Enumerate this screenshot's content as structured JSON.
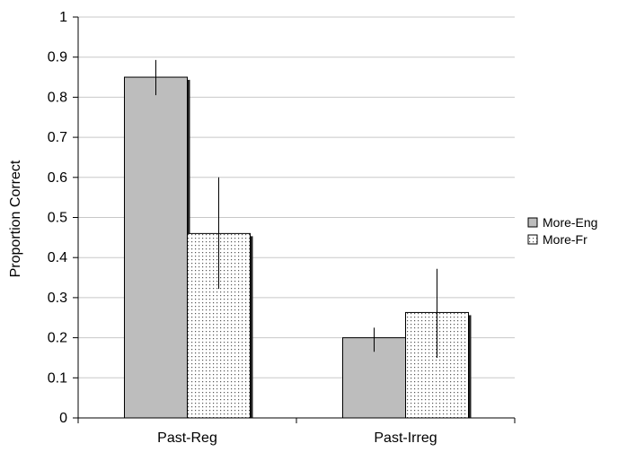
{
  "chart_data": {
    "type": "bar",
    "ylabel": "Proportion Correct",
    "ylim": [
      0,
      1
    ],
    "y_ticks": [
      "0",
      "0.1",
      "0.2",
      "0.3",
      "0.4",
      "0.5",
      "0.6",
      "0.7",
      "0.8",
      "0.9",
      "1"
    ],
    "categories": [
      "Past-Reg",
      "Past-Irreg"
    ],
    "series": [
      {
        "name": "More-Eng",
        "values": [
          0.85,
          0.2
        ],
        "error_low": [
          0.805,
          0.165
        ],
        "error_high": [
          0.893,
          0.225
        ],
        "pattern": "solid",
        "color": "#bdbdbd"
      },
      {
        "name": "More-Fr",
        "values": [
          0.46,
          0.263
        ],
        "error_low": [
          0.322,
          0.15
        ],
        "error_high": [
          0.6,
          0.372
        ],
        "pattern": "dotted",
        "color": "#ffffff"
      }
    ],
    "grid": true,
    "legend_position": "right"
  }
}
